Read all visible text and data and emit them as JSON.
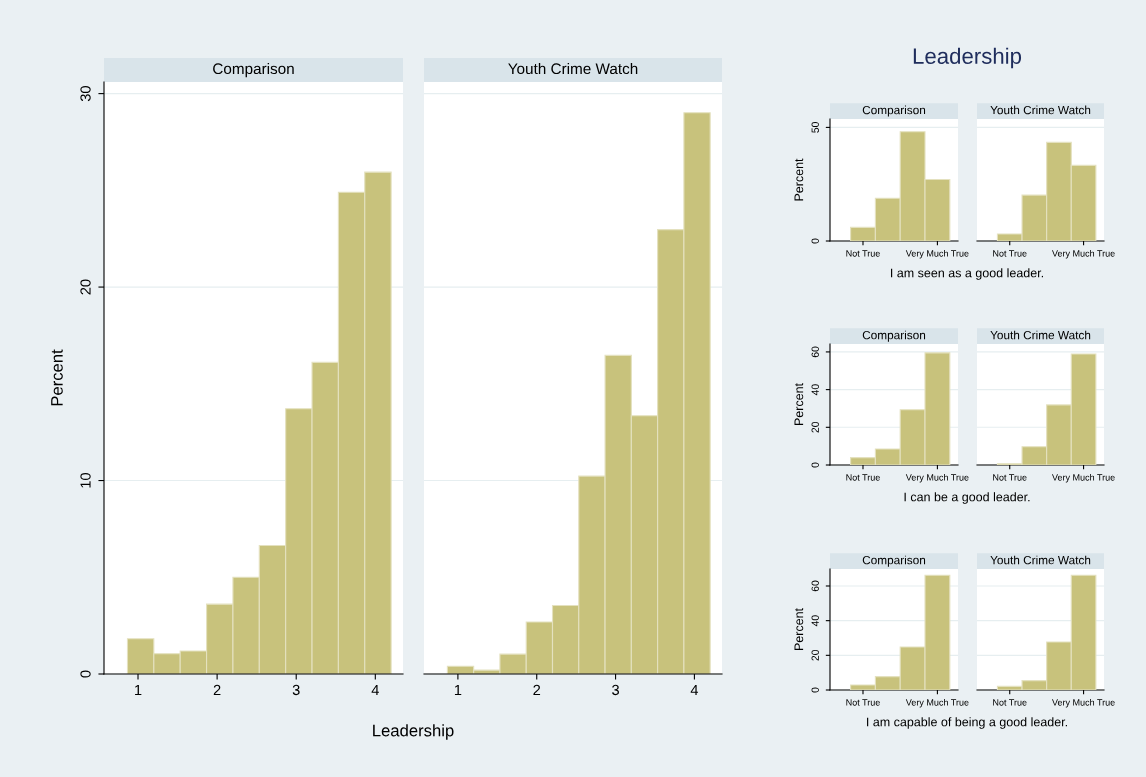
{
  "chart_data": [
    {
      "type": "histogram",
      "title": "Comparison",
      "xlabel": "Leadership",
      "ylabel": "Percent",
      "color": "#c8c27c",
      "grid": "y",
      "bins": [
        0.8667,
        1.2,
        1.5333,
        1.8667,
        2.2,
        2.5333,
        2.8667,
        3.2,
        3.5333,
        3.8667,
        4.2
      ],
      "values": [
        1.82,
        1.05,
        1.19,
        3.61,
        5.0,
        6.64,
        13.71,
        16.11,
        24.9,
        25.94
      ],
      "xlim": [
        0.57,
        4.35
      ],
      "xticks": [
        1,
        2,
        3,
        4
      ],
      "ylim": [
        0,
        30.6
      ],
      "yticks": [
        0,
        10,
        20,
        30
      ]
    },
    {
      "type": "histogram",
      "title": "Youth Crime Watch",
      "color": "#c8c27c",
      "grid": "y",
      "tick_labels": "x",
      "bins": [
        0.8667,
        1.2,
        1.5333,
        1.8667,
        2.2,
        2.5333,
        2.8667,
        3.2,
        3.5333,
        3.8667,
        4.2
      ],
      "values": [
        0.4,
        0.2,
        1.03,
        2.69,
        3.54,
        10.23,
        16.47,
        13.35,
        22.97,
        29.01
      ],
      "xlim": [
        0.57,
        4.35
      ],
      "xticks": [
        1,
        2,
        3,
        4
      ],
      "ylim": [
        0,
        30.6
      ],
      "yticks": [
        0,
        10,
        20,
        30
      ]
    },
    {
      "type": "bar",
      "title": "Comparison",
      "xlabel": "I am seen as a good leader.",
      "ylabel": "Percent",
      "annotations": [
        "Leadership"
      ],
      "color": "#c8c27c",
      "grid": "y",
      "categories": [
        "Not True",
        null,
        null,
        "Very Much True"
      ],
      "values": [
        6.0,
        18.8,
        48.1,
        27.1
      ],
      "ylim": [
        0,
        53.7
      ],
      "yticks": [
        0,
        50
      ]
    },
    {
      "type": "bar",
      "title": "Youth Crime Watch",
      "color": "#c8c27c",
      "grid": "y",
      "tick_labels": "x",
      "categories": [
        "Not True",
        null,
        null,
        "Very Much True"
      ],
      "values": [
        3.1,
        20.2,
        43.4,
        33.3
      ],
      "ylim": [
        0,
        53.7
      ],
      "yticks": [
        0,
        50
      ]
    },
    {
      "type": "bar",
      "title": "Comparison",
      "xlabel": "I can be a good leader.",
      "ylabel": "Percent",
      "color": "#c8c27c",
      "grid": "y",
      "categories": [
        "Not True",
        null,
        null,
        "Very Much True"
      ],
      "values": [
        3.9,
        8.5,
        29.3,
        59.5
      ],
      "ylim": [
        0,
        64.2
      ],
      "yticks": [
        0,
        20,
        40,
        60
      ]
    },
    {
      "type": "bar",
      "title": "Youth Crime Watch",
      "color": "#c8c27c",
      "grid": "y",
      "tick_labels": "x",
      "categories": [
        "Not True",
        null,
        null,
        "Very Much True"
      ],
      "values": [
        0.7,
        9.7,
        31.9,
        58.9
      ],
      "ylim": [
        0,
        64.2
      ],
      "yticks": [
        0,
        20,
        40,
        60
      ]
    },
    {
      "type": "bar",
      "title": "Comparison",
      "xlabel": "I am capable of being a good leader.",
      "ylabel": "Percent",
      "color": "#c8c27c",
      "grid": "y",
      "categories": [
        "Not True",
        null,
        null,
        "Very Much True"
      ],
      "values": [
        2.9,
        7.7,
        24.8,
        66.2
      ],
      "ylim": [
        0,
        69.8
      ],
      "yticks": [
        0,
        20,
        40,
        60
      ]
    },
    {
      "type": "bar",
      "title": "Youth Crime Watch",
      "color": "#c8c27c",
      "grid": "y",
      "tick_labels": "x",
      "categories": [
        "Not True",
        null,
        null,
        "Very Much True"
      ],
      "values": [
        2.1,
        5.4,
        27.7,
        66.2
      ],
      "ylim": [
        0,
        69.8
      ],
      "yticks": [
        0,
        20,
        40,
        60
      ]
    }
  ]
}
